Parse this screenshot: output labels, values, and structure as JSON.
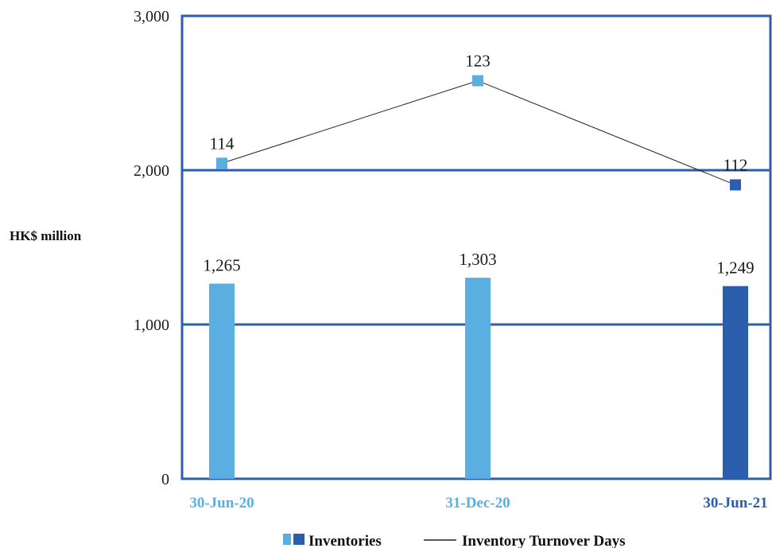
{
  "chart_data": {
    "type": "bar",
    "categories": [
      "30-Jun-20",
      "31-Dec-20",
      "30-Jun-21"
    ],
    "category_colors": [
      "#5aafe0",
      "#5aafe0",
      "#2b5eac"
    ],
    "series": [
      {
        "name": "Inventories",
        "type": "bar",
        "values": [
          1265,
          1303,
          1249
        ],
        "labels": [
          "1,265",
          "1,303",
          "1,249"
        ],
        "colors": [
          "#5aafe0",
          "#5aafe0",
          "#2b5eac"
        ]
      },
      {
        "name": "Inventory Turnover Days",
        "type": "line",
        "values": [
          114,
          123,
          112
        ],
        "labels": [
          "114",
          "123",
          "112"
        ],
        "marker_colors": [
          "#5aafe0",
          "#5aafe0",
          "#2b5eac"
        ],
        "plotted_positions_primary_axis": [
          2045,
          2580,
          1905
        ]
      }
    ],
    "ylabel": "HK$ million",
    "xlabel": "",
    "ylim": [
      0,
      3000
    ],
    "yticks": [
      0,
      1000,
      2000,
      3000
    ],
    "ytick_labels": [
      "0",
      "1,000",
      "2,000",
      "3,000"
    ],
    "grid": true,
    "legend_position": "bottom",
    "legend": {
      "inventories_label": "Inventories",
      "turnover_label": "Inventory Turnover Days",
      "inventories_swatch_colors": [
        "#5aafe0",
        "#2b5eac"
      ],
      "turnover_line_color": "#222222"
    },
    "frame_color": "#2b5eac",
    "gridline_color": "#2b5eac"
  }
}
